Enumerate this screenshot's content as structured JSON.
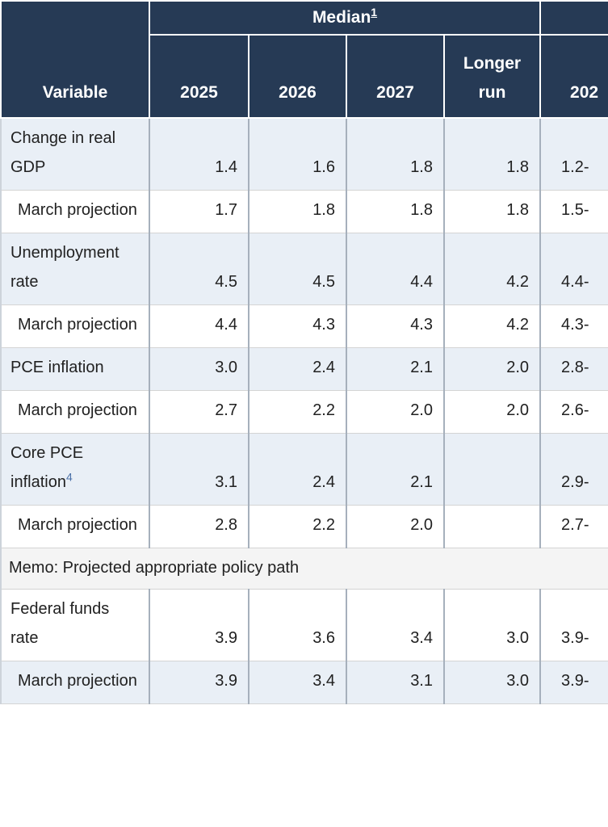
{
  "colors": {
    "header_bg": "#263a55",
    "header_text": "#ffffff",
    "shaded_row_bg": "#e9eff6",
    "memo_bg": "#f4f4f4",
    "body_text": "#212121",
    "footnote_link": "#4a70a8",
    "col_border": "#a6b0bc",
    "row_border": "#d4d4d4",
    "outer_border": "#cdd3da"
  },
  "header": {
    "variable_label": "Variable",
    "median_group": {
      "label": "Median",
      "footnote": "1"
    },
    "clipped_group_label": "",
    "year_columns": [
      "2025",
      "2026",
      "2027"
    ],
    "longer_run_label": "Longer run",
    "clipped_column_label": "202"
  },
  "rows": [
    {
      "label": "Change in real GDP",
      "footnote": "",
      "values": [
        "1.4",
        "1.6",
        "1.8",
        "1.8"
      ],
      "cut_value": "1.2-"
    },
    {
      "label": "March projection",
      "footnote": "",
      "values": [
        "1.7",
        "1.8",
        "1.8",
        "1.8"
      ],
      "cut_value": "1.5-"
    },
    {
      "label": "Unemployment rate",
      "footnote": "",
      "values": [
        "4.5",
        "4.5",
        "4.4",
        "4.2"
      ],
      "cut_value": "4.4-"
    },
    {
      "label": "March projection",
      "footnote": "",
      "values": [
        "4.4",
        "4.3",
        "4.3",
        "4.2"
      ],
      "cut_value": "4.3-"
    },
    {
      "label": "PCE inflation",
      "footnote": "",
      "values": [
        "3.0",
        "2.4",
        "2.1",
        "2.0"
      ],
      "cut_value": "2.8-"
    },
    {
      "label": "March projection",
      "footnote": "",
      "values": [
        "2.7",
        "2.2",
        "2.0",
        "2.0"
      ],
      "cut_value": "2.6-"
    },
    {
      "label": "Core PCE inflation",
      "footnote": "4",
      "values": [
        "3.1",
        "2.4",
        "2.1",
        ""
      ],
      "cut_value": "2.9-"
    },
    {
      "label": "March projection",
      "footnote": "",
      "values": [
        "2.8",
        "2.2",
        "2.0",
        ""
      ],
      "cut_value": "2.7-"
    },
    {
      "label": "Federal funds rate",
      "footnote": "",
      "values": [
        "3.9",
        "3.6",
        "3.4",
        "3.0"
      ],
      "cut_value": "3.9-"
    },
    {
      "label": "March projection",
      "footnote": "",
      "values": [
        "3.9",
        "3.4",
        "3.1",
        "3.0"
      ],
      "cut_value": "3.9-"
    }
  ],
  "memo": {
    "text": "Memo: Projected appropriate policy path"
  }
}
